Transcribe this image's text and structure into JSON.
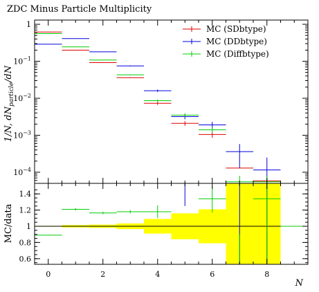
{
  "chart_data": [
    {
      "type": "line",
      "title": "ZDC Minus Particle Multiplicity",
      "ylabel": "1/N, dN_particle/dN",
      "ylabel_main": "1/N, dN",
      "ylabel_sub": "particle",
      "ylabel_tail": "/dN",
      "yscale": "log",
      "xlim": [
        -0.5,
        9.5
      ],
      "ylim": [
        5e-05,
        1.3
      ],
      "yticks": [
        {
          "value": 1,
          "label": "1"
        },
        {
          "value": 0.1,
          "label": "10^-1",
          "base": "10",
          "exp": "−1"
        },
        {
          "value": 0.01,
          "label": "10^-2",
          "base": "10",
          "exp": "−2"
        },
        {
          "value": 0.001,
          "label": "10^-3",
          "base": "10",
          "exp": "−3"
        },
        {
          "value": 0.0001,
          "label": "10^-4",
          "base": "10",
          "exp": "−4"
        }
      ],
      "legend_position": "top-right",
      "series": [
        {
          "name": "MC (SDbtype)",
          "color": "#dd0000",
          "bins": [
            [
              -0.5,
              0.5
            ],
            [
              0.5,
              1.5
            ],
            [
              1.5,
              2.5
            ],
            [
              2.5,
              3.5
            ],
            [
              3.5,
              4.5
            ],
            [
              4.5,
              5.5
            ],
            [
              5.5,
              6.5
            ],
            [
              6.5,
              7.5
            ],
            [
              7.5,
              8.5
            ]
          ],
          "values": [
            0.62,
            0.2,
            0.092,
            0.036,
            0.0073,
            0.0021,
            0.00105,
            0.00013,
            5.8e-05
          ],
          "err_lo": [
            0.61,
            0.198,
            0.091,
            0.0352,
            0.0066,
            0.0018,
            0.00085,
            0.00013,
            5.8e-05
          ],
          "err_hi": [
            0.63,
            0.202,
            0.093,
            0.0368,
            0.008,
            0.0024,
            0.00125,
            0.00013,
            5.8e-05
          ]
        },
        {
          "name": "MC (DDbtype)",
          "color": "#0000dd",
          "bins": [
            [
              -0.5,
              0.5
            ],
            [
              0.5,
              1.5
            ],
            [
              1.5,
              2.5
            ],
            [
              2.5,
              3.5
            ],
            [
              3.5,
              4.5
            ],
            [
              4.5,
              5.5
            ],
            [
              5.5,
              6.5
            ],
            [
              6.5,
              7.5
            ],
            [
              7.5,
              8.5
            ]
          ],
          "values": [
            0.29,
            0.41,
            0.18,
            0.075,
            0.016,
            0.0032,
            0.0019,
            0.00036,
            0.000115
          ],
          "err_lo": [
            0.287,
            0.405,
            0.177,
            0.073,
            0.0148,
            0.0027,
            0.0015,
            0.00013,
            5e-05
          ],
          "err_hi": [
            0.293,
            0.415,
            0.183,
            0.077,
            0.0172,
            0.0037,
            0.0023,
            0.00058,
            0.00025
          ]
        },
        {
          "name": "MC (Diffbtype)",
          "color": "#00cc00",
          "bins": [
            [
              -0.5,
              0.5
            ],
            [
              0.5,
              1.5
            ],
            [
              1.5,
              2.5
            ],
            [
              2.5,
              3.5
            ],
            [
              3.5,
              4.5
            ],
            [
              4.5,
              5.5
            ],
            [
              5.5,
              6.5
            ],
            [
              6.5,
              7.5
            ],
            [
              7.5,
              8.5
            ]
          ],
          "values": [
            0.56,
            0.245,
            0.108,
            0.043,
            0.0086,
            0.0035,
            0.0014,
            5.5e-05,
            5.5e-05
          ],
          "err_lo": [
            0.553,
            0.242,
            0.106,
            0.0418,
            0.0079,
            0.0031,
            0.00115,
            3e-05,
            3e-05
          ],
          "err_hi": [
            0.567,
            0.248,
            0.11,
            0.0442,
            0.0093,
            0.0039,
            0.00165,
            8e-05,
            8e-05
          ]
        }
      ]
    },
    {
      "type": "line",
      "ylabel": "MC/data",
      "xlabel": "N",
      "xlim": [
        -0.5,
        9.5
      ],
      "ylim": [
        0.53,
        1.53
      ],
      "xticks": [
        0,
        2,
        4,
        6,
        8
      ],
      "yticks": [
        0.6,
        0.8,
        1,
        1.2,
        1.4
      ],
      "ytick_labels": [
        "0.6",
        "0.8",
        "1",
        "1.2",
        "1.4"
      ],
      "reference_line": 1,
      "band": {
        "color": "#ffff00",
        "bins": [
          [
            -0.5,
            0.5
          ],
          [
            0.5,
            1.5
          ],
          [
            1.5,
            2.5
          ],
          [
            2.5,
            3.5
          ],
          [
            3.5,
            4.5
          ],
          [
            4.5,
            5.5
          ],
          [
            5.5,
            6.5
          ],
          [
            6.5,
            7.5
          ],
          [
            7.5,
            8.5
          ]
        ],
        "lo": [
          0.995,
          0.985,
          0.98,
          0.965,
          0.91,
          0.84,
          0.79,
          0.5,
          0.5
        ],
        "hi": [
          1.005,
          1.015,
          1.02,
          1.035,
          1.09,
          1.16,
          1.21,
          1.6,
          1.6
        ]
      },
      "series": [
        {
          "name": "MC (SDbtype)",
          "color": "#dd0000",
          "bins": [
            [
              7.5,
              8.5
            ]
          ],
          "values": [
            1.6
          ],
          "err_lo": [
            1.6
          ],
          "err_hi": [
            1.6
          ]
        },
        {
          "name": "MC (DDbtype)",
          "color": "#0000dd",
          "bins": [
            [
              4.5,
              5.5
            ],
            [
              6.5,
              7.5
            ],
            [
              7.5,
              8.5
            ]
          ],
          "values": [
            1.6,
            1.6,
            1.6
          ],
          "err_lo": [
            1.25,
            0.5,
            0.5
          ],
          "err_hi": [
            1.6,
            1.6,
            1.6
          ]
        },
        {
          "name": "MC (Diffbtype)",
          "color": "#00cc00",
          "bins": [
            [
              -0.5,
              0.5
            ],
            [
              0.5,
              1.5
            ],
            [
              1.5,
              2.5
            ],
            [
              2.5,
              3.5
            ],
            [
              3.5,
              4.5
            ],
            [
              5.5,
              6.5
            ],
            [
              6.5,
              7.5
            ],
            [
              7.5,
              8.5
            ],
            [
              8.5,
              9.5
            ]
          ],
          "values": [
            0.89,
            1.21,
            1.165,
            1.18,
            1.18,
            1.34,
            0.5,
            1.34,
            1.0
          ],
          "err_lo": [
            0.885,
            1.195,
            1.15,
            1.16,
            1.1,
            1.17,
            0.5,
            0.5,
            1.0
          ],
          "err_hi": [
            0.895,
            1.225,
            1.18,
            1.2,
            1.26,
            1.5,
            0.9,
            1.6,
            1.0
          ]
        }
      ]
    }
  ]
}
